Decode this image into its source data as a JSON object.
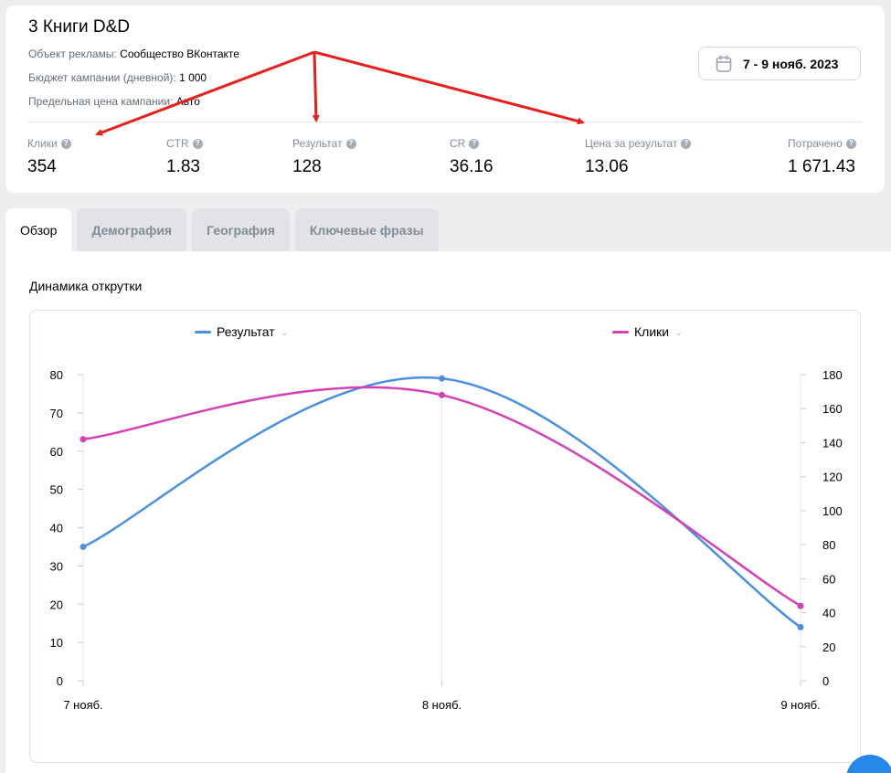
{
  "campaign": {
    "title": "3 Книги D&D",
    "meta": [
      {
        "label": "Объект рекламы:",
        "value": "Сообщество ВКонтакте"
      },
      {
        "label": "Бюджет кампании (дневной):",
        "value": "1 000"
      },
      {
        "label": "Предельная цена кампании:",
        "value": "Авто"
      }
    ],
    "date_range": "7 - 9 нояб. 2023"
  },
  "metrics": [
    {
      "label": "Клики",
      "value": "354"
    },
    {
      "label": "CTR",
      "value": "1.83"
    },
    {
      "label": "Результат",
      "value": "128"
    },
    {
      "label": "CR",
      "value": "36.16"
    },
    {
      "label": "Цена за результат",
      "value": "13.06"
    },
    {
      "label": "Потрачено",
      "value": "1 671.43"
    }
  ],
  "tabs": [
    {
      "label": "Обзор",
      "active": true
    },
    {
      "label": "Демография",
      "active": false
    },
    {
      "label": "География",
      "active": false
    },
    {
      "label": "Ключевые фразы",
      "active": false
    }
  ],
  "section_title": "Динамика открутки",
  "colors": {
    "result": "#4a90e2",
    "clicks": "#d63fb5",
    "annotation_arrow": "#e8201c"
  },
  "chart_data": {
    "type": "line",
    "categories": [
      "7 нояб.",
      "8 нояб.",
      "9 нояб."
    ],
    "series": [
      {
        "name": "Результат",
        "axis": "left",
        "values": [
          35,
          79,
          14
        ]
      },
      {
        "name": "Клики",
        "axis": "right",
        "values": [
          142,
          168,
          44
        ]
      }
    ],
    "y_left": {
      "ticks": [
        0,
        10,
        20,
        30,
        40,
        50,
        60,
        70,
        80
      ],
      "ylim": [
        0,
        80
      ]
    },
    "y_right": {
      "ticks": [
        0,
        20,
        40,
        60,
        80,
        100,
        120,
        140,
        160,
        180
      ],
      "ylim": [
        0,
        180
      ]
    },
    "legend_position": "top",
    "grid": false
  }
}
